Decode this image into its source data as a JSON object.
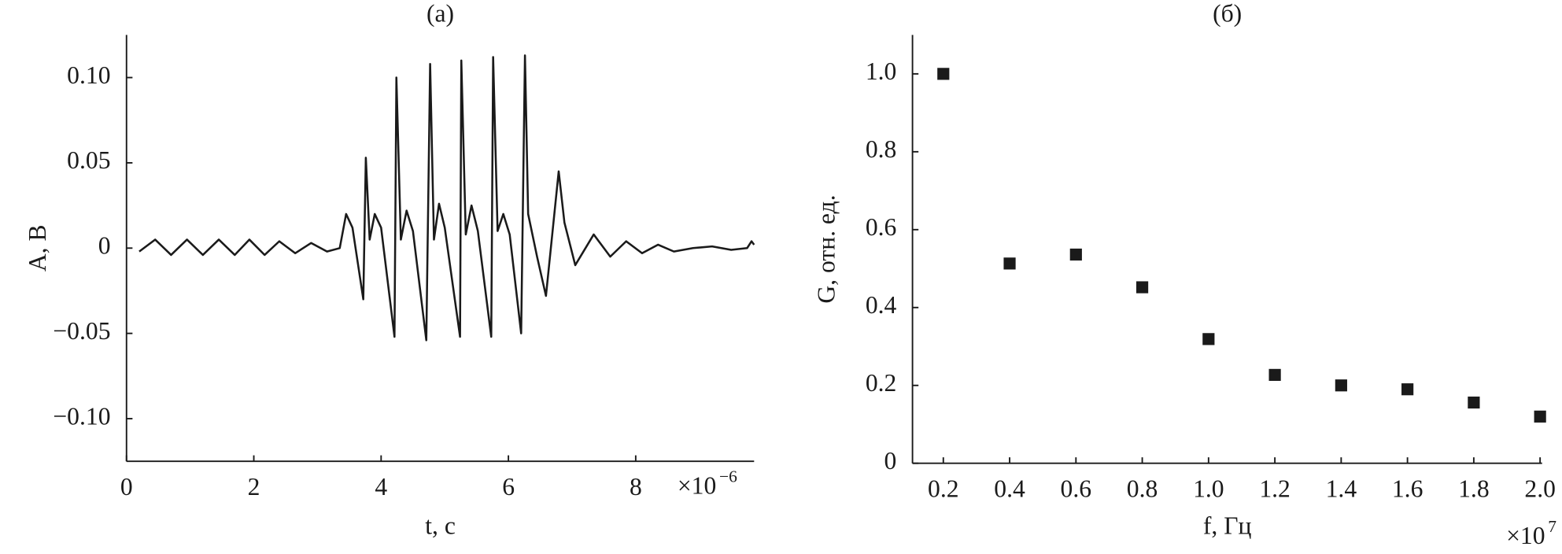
{
  "chart_data": [
    {
      "type": "line",
      "title": "(а)",
      "xlabel": "t, с",
      "ylabel": "A, В",
      "x_multiplier": {
        "base": "×10",
        "exponent": "−6"
      },
      "x": [
        0.2,
        0.45,
        0.7,
        0.95,
        1.2,
        1.45,
        1.7,
        1.93,
        2.17,
        2.4,
        2.65,
        2.9,
        3.15,
        3.35,
        3.45,
        3.55,
        3.72,
        3.76,
        3.82,
        3.9,
        4.0,
        4.21,
        4.24,
        4.31,
        4.4,
        4.5,
        4.71,
        4.77,
        4.83,
        4.91,
        5.0,
        5.24,
        5.26,
        5.33,
        5.42,
        5.52,
        5.73,
        5.76,
        5.83,
        5.92,
        6.02,
        6.2,
        6.26,
        6.31,
        6.45,
        6.59,
        6.79,
        6.88,
        7.05,
        7.34,
        7.6,
        7.85,
        8.1,
        8.35,
        8.6,
        8.9,
        9.2,
        9.5,
        9.75,
        9.82,
        9.86
      ],
      "values": [
        -0.002,
        0.005,
        -0.004,
        0.005,
        -0.004,
        0.005,
        -0.004,
        0.005,
        -0.004,
        0.004,
        -0.003,
        0.003,
        -0.002,
        0.0,
        0.02,
        0.012,
        -0.03,
        0.053,
        0.005,
        0.02,
        0.012,
        -0.052,
        0.1,
        0.005,
        0.022,
        0.01,
        -0.054,
        0.108,
        0.005,
        0.026,
        0.012,
        -0.052,
        0.11,
        0.008,
        0.025,
        0.01,
        -0.052,
        0.112,
        0.01,
        0.02,
        0.008,
        -0.05,
        0.113,
        0.02,
        -0.005,
        -0.028,
        0.045,
        0.015,
        -0.01,
        0.008,
        -0.005,
        0.004,
        -0.003,
        0.002,
        -0.002,
        0.0,
        0.001,
        -0.001,
        0.0,
        0.004,
        0.002
      ],
      "color": "#1a1a1a",
      "xlim": [
        0,
        9.86
      ],
      "ylim": [
        -0.125,
        0.125
      ],
      "xticks": [
        0,
        2,
        4,
        6,
        8
      ],
      "yticks": [
        {
          "value": -0.1,
          "label": "−0.10"
        },
        {
          "value": -0.05,
          "label": "−0.05"
        },
        0,
        {
          "value": 0.05,
          "label": "0.05"
        },
        {
          "value": 0.1,
          "label": "0.10"
        }
      ]
    },
    {
      "type": "scatter",
      "title": "(б)",
      "xlabel": "f, Гц",
      "ylabel": "G, отн. ед.",
      "x_multiplier": {
        "base": "×10",
        "exponent": "7"
      },
      "x": [
        0.2,
        0.4,
        0.6,
        0.8,
        1.0,
        1.2,
        1.4,
        1.6,
        1.8,
        2.0
      ],
      "values": [
        1.0,
        0.513,
        0.536,
        0.452,
        0.319,
        0.227,
        0.2,
        0.19,
        0.156,
        0.12
      ],
      "color": "#1a1a1a",
      "xlim": [
        0.107,
        2.006
      ],
      "ylim": [
        0,
        1.1
      ],
      "xticks": [
        0.2,
        0.4,
        0.6,
        0.8,
        {
          "value": 1,
          "label": "1.0"
        },
        1.2,
        1.4,
        1.6,
        1.8,
        {
          "value": 2,
          "label": "2.0"
        }
      ],
      "yticks": [
        0,
        0.2,
        0.4,
        0.6,
        0.8,
        {
          "value": 1,
          "label": "1.0"
        }
      ]
    }
  ]
}
